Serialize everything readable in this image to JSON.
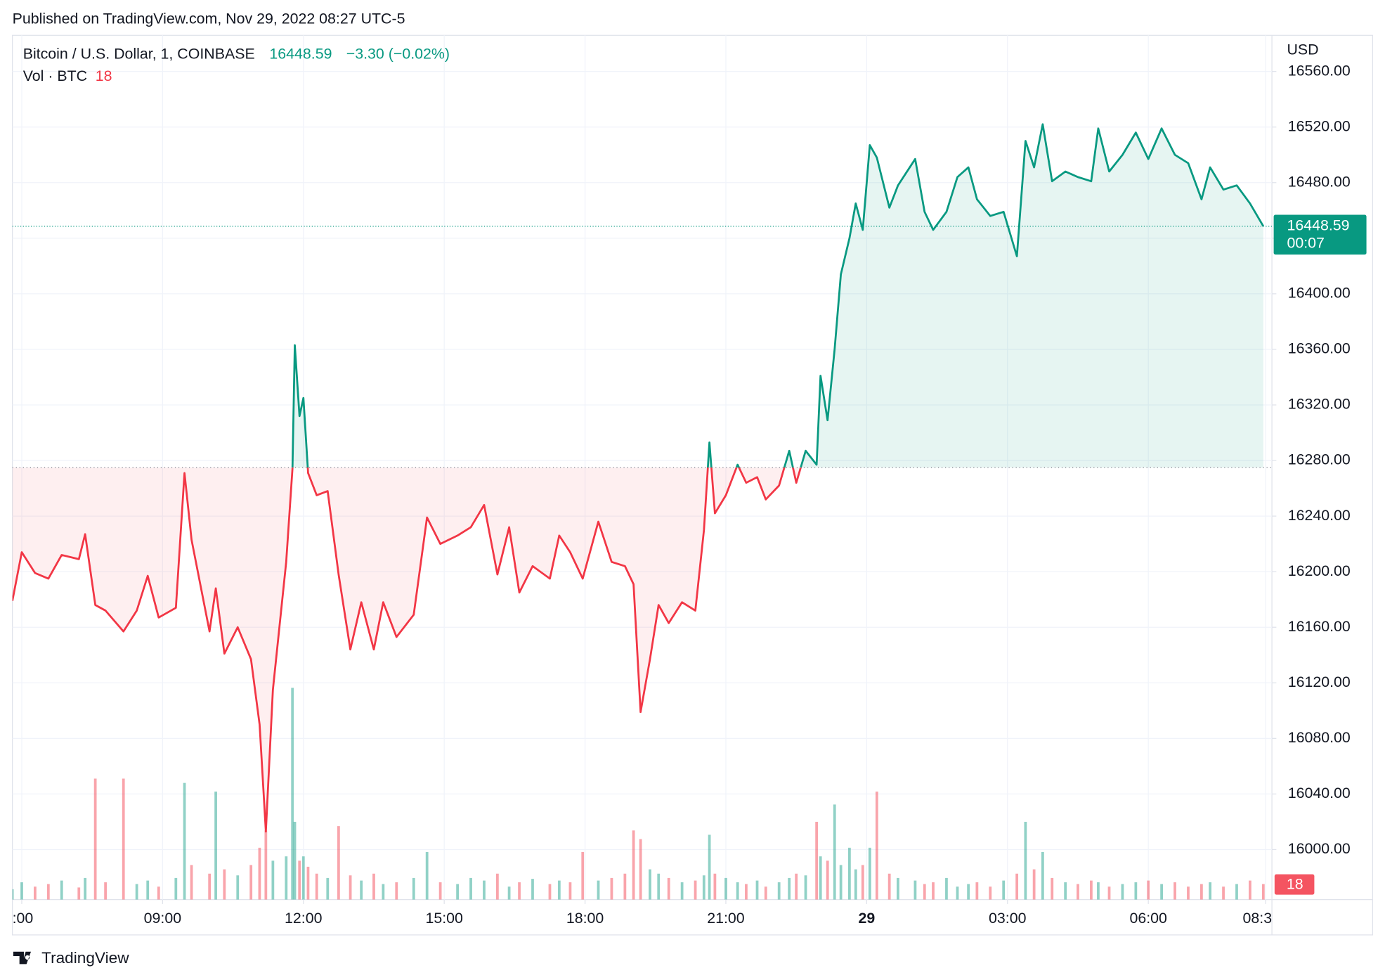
{
  "header": {
    "published": "Published on TradingView.com, Nov 29, 2022 08:27 UTC-5",
    "change": "−3.30 (−0.02%)",
    "countdown": "00:07",
    "currency": "USD",
    "brand": "TradingView"
  },
  "chart_data": {
    "type": "baseline",
    "baseline": 16275,
    "up_color": "#089981",
    "down_color": "#f23645",
    "x": [
      "2022-11-28T05:48",
      "2022-11-28T06:00",
      "2022-11-28T06:17",
      "2022-11-28T06:34",
      "2022-11-28T06:51",
      "2022-11-28T07:13",
      "2022-11-28T07:21",
      "2022-11-28T07:34",
      "2022-11-28T07:47",
      "2022-11-28T08:10",
      "2022-11-28T08:27",
      "2022-11-28T08:41",
      "2022-11-28T08:55",
      "2022-11-28T09:17",
      "2022-11-28T09:28",
      "2022-11-28T09:37",
      "2022-11-28T10:00",
      "2022-11-28T10:08",
      "2022-11-28T10:19",
      "2022-11-28T10:36",
      "2022-11-28T10:53",
      "2022-11-28T11:04",
      "2022-11-28T11:12",
      "2022-11-28T11:21",
      "2022-11-28T11:38",
      "2022-11-28T11:46",
      "2022-11-28T11:49",
      "2022-11-28T11:55",
      "2022-11-28T12:00",
      "2022-11-28T12:06",
      "2022-11-28T12:17",
      "2022-11-28T12:31",
      "2022-11-28T12:45",
      "2022-11-28T13:00",
      "2022-11-28T13:14",
      "2022-11-28T13:30",
      "2022-11-28T13:42",
      "2022-11-28T13:59",
      "2022-11-28T14:21",
      "2022-11-28T14:38",
      "2022-11-28T14:55",
      "2022-11-28T15:17",
      "2022-11-28T15:34",
      "2022-11-28T15:51",
      "2022-11-28T16:08",
      "2022-11-28T16:23",
      "2022-11-28T16:36",
      "2022-11-28T16:53",
      "2022-11-28T17:15",
      "2022-11-28T17:27",
      "2022-11-28T17:41",
      "2022-11-28T17:57",
      "2022-11-28T18:17",
      "2022-11-28T18:34",
      "2022-11-28T18:51",
      "2022-11-28T19:02",
      "2022-11-28T19:11",
      "2022-11-28T19:23",
      "2022-11-28T19:34",
      "2022-11-28T19:47",
      "2022-11-28T20:04",
      "2022-11-28T20:21",
      "2022-11-28T20:32",
      "2022-11-28T20:39",
      "2022-11-28T20:46",
      "2022-11-28T21:00",
      "2022-11-28T21:15",
      "2022-11-28T21:26",
      "2022-11-28T21:40",
      "2022-11-28T21:51",
      "2022-11-28T22:08",
      "2022-11-28T22:21",
      "2022-11-28T22:30",
      "2022-11-28T22:42",
      "2022-11-28T22:56",
      "2022-11-28T23:01",
      "2022-11-28T23:10",
      "2022-11-28T23:19",
      "2022-11-28T23:27",
      "2022-11-28T23:38",
      "2022-11-28T23:46",
      "2022-11-28T23:55",
      "2022-11-29T00:04",
      "2022-11-29T00:13",
      "2022-11-29T00:29",
      "2022-11-29T00:40",
      "2022-11-29T01:02",
      "2022-11-29T01:14",
      "2022-11-29T01:25",
      "2022-11-29T01:42",
      "2022-11-29T01:56",
      "2022-11-29T02:10",
      "2022-11-29T02:21",
      "2022-11-29T02:38",
      "2022-11-29T02:55",
      "2022-11-29T03:12",
      "2022-11-29T03:23",
      "2022-11-29T03:34",
      "2022-11-29T03:45",
      "2022-11-29T03:57",
      "2022-11-29T04:14",
      "2022-11-29T04:30",
      "2022-11-29T04:47",
      "2022-11-29T04:56",
      "2022-11-29T05:10",
      "2022-11-29T05:27",
      "2022-11-29T05:44",
      "2022-11-29T06:00",
      "2022-11-29T06:17",
      "2022-11-29T06:34",
      "2022-11-29T06:51",
      "2022-11-29T07:08",
      "2022-11-29T07:19",
      "2022-11-29T07:36",
      "2022-11-29T07:53",
      "2022-11-29T08:10",
      "2022-11-29T08:27"
    ],
    "series": [
      {
        "name": "Bitcoin / U.S. Dollar, 1, COINBASE",
        "values": [
          16179,
          16214,
          16199,
          16195,
          16212,
          16209,
          16227,
          16176,
          16172,
          16157,
          16172,
          16197,
          16167,
          16174,
          16271,
          16223,
          16157,
          16188,
          16141,
          16160,
          16137,
          16090,
          16013,
          16115,
          16207,
          16274,
          16363,
          16312,
          16325,
          16271,
          16255,
          16258,
          16198,
          16144,
          16178,
          16144,
          16178,
          16153,
          16169,
          16239,
          16220,
          16226,
          16232,
          16248,
          16198,
          16232,
          16185,
          16204,
          16195,
          16226,
          16214,
          16195,
          16236,
          16207,
          16204,
          16191,
          16099,
          16137,
          16176,
          16163,
          16178,
          16172,
          16230,
          16293,
          16242,
          16255,
          16277,
          16264,
          16268,
          16252,
          16262,
          16287,
          16264,
          16287,
          16277,
          16341,
          16309,
          16360,
          16414,
          16440,
          16465,
          16446,
          16507,
          16498,
          16462,
          16478,
          16497,
          16459,
          16446,
          16459,
          16484,
          16491,
          16468,
          16456,
          16459,
          16427,
          16510,
          16491,
          16522,
          16481,
          16488,
          16484,
          16481,
          16519,
          16488,
          16500,
          16516,
          16497,
          16519,
          16500,
          16494,
          16468,
          16491,
          16475,
          16478,
          16465,
          16448.59
        ]
      },
      {
        "name": "Vol · BTC",
        "axis": "y2",
        "values": [
          12,
          20,
          15,
          18,
          22,
          14,
          25,
          140,
          20,
          140,
          18,
          22,
          15,
          25,
          135,
          40,
          30,
          125,
          35,
          28,
          40,
          60,
          80,
          45,
          50,
          245,
          90,
          45,
          50,
          38,
          30,
          25,
          85,
          28,
          22,
          30,
          18,
          20,
          25,
          55,
          20,
          18,
          25,
          22,
          30,
          15,
          20,
          24,
          18,
          22,
          20,
          55,
          22,
          25,
          30,
          80,
          70,
          35,
          30,
          25,
          20,
          22,
          28,
          75,
          30,
          25,
          20,
          18,
          22,
          15,
          20,
          25,
          30,
          28,
          90,
          50,
          45,
          110,
          40,
          60,
          35,
          40,
          60,
          125,
          30,
          25,
          22,
          18,
          20,
          25,
          15,
          18,
          20,
          15,
          22,
          30,
          90,
          35,
          55,
          25,
          20,
          18,
          22,
          20,
          15,
          18,
          20,
          22,
          18,
          20,
          15,
          18,
          20,
          15,
          18,
          22,
          18
        ]
      }
    ],
    "xlim": [
      "2022-11-28T05:48",
      "2022-11-29T08:38"
    ],
    "xticks": [
      {
        "value": "2022-11-28T06:00",
        "label": ":00"
      },
      {
        "value": "2022-11-28T09:00",
        "label": "09:00"
      },
      {
        "value": "2022-11-28T12:00",
        "label": "12:00"
      },
      {
        "value": "2022-11-28T15:00",
        "label": "15:00"
      },
      {
        "value": "2022-11-28T18:00",
        "label": "18:00"
      },
      {
        "value": "2022-11-28T21:00",
        "label": "21:00"
      },
      {
        "value": "2022-11-29T00:00",
        "label": "29"
      },
      {
        "value": "2022-11-29T03:00",
        "label": "03:00"
      },
      {
        "value": "2022-11-29T06:00",
        "label": "06:00"
      },
      {
        "value": "2022-11-29T08:30",
        "label": "08:3"
      }
    ],
    "ylim": [
      15964,
      16586
    ],
    "yticks": [
      {
        "value": 16000,
        "label": "16000.00"
      },
      {
        "value": 16040,
        "label": "16040.00"
      },
      {
        "value": 16080,
        "label": "16080.00"
      },
      {
        "value": 16120,
        "label": "16120.00"
      },
      {
        "value": 16160,
        "label": "16160.00"
      },
      {
        "value": 16200,
        "label": "16200.00"
      },
      {
        "value": 16240,
        "label": "16240.00"
      },
      {
        "value": 16280,
        "label": "16280.00"
      },
      {
        "value": 16320,
        "label": "16320.00"
      },
      {
        "value": 16360,
        "label": "16360.00"
      },
      {
        "value": 16400,
        "label": "16400.00"
      },
      {
        "value": 16440,
        "label": "16440.00"
      },
      {
        "value": 16480,
        "label": "16480.00"
      },
      {
        "value": 16520,
        "label": "16520.00"
      },
      {
        "value": 16560,
        "label": "16560.00"
      }
    ],
    "y2lim": [
      0,
      1000
    ],
    "grid": true
  }
}
